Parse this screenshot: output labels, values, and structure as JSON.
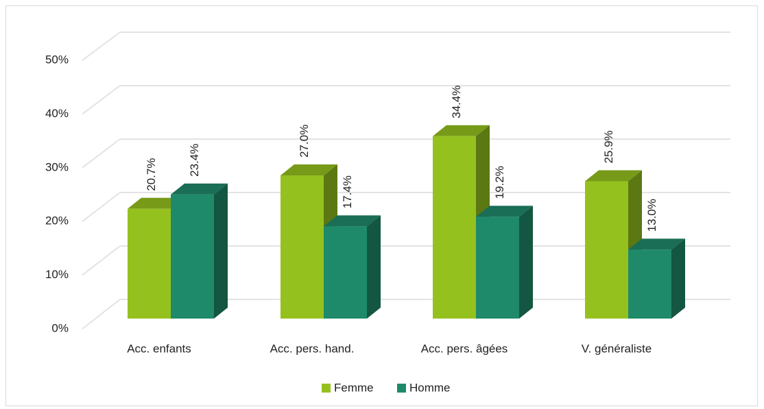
{
  "chart_data": {
    "type": "bar3d",
    "categories": [
      "Acc. enfants",
      "Acc. pers. hand.",
      "Acc. pers. âgées",
      "V. généraliste"
    ],
    "series": [
      {
        "name": "Femme",
        "color": "#95c11f",
        "values": [
          20.7,
          27.0,
          34.4,
          25.9
        ],
        "value_labels": [
          "20.7%",
          "27.0%",
          "34.4%",
          "25.9%"
        ]
      },
      {
        "name": "Homme",
        "color": "#1f8a6a",
        "values": [
          23.4,
          17.4,
          19.2,
          13.0
        ],
        "value_labels": [
          "23.4%",
          "17.4%",
          "19.2%",
          "13.0%"
        ]
      }
    ],
    "ylim": [
      0,
      50
    ],
    "yticks": [
      {
        "value": 0,
        "label": "0%"
      },
      {
        "value": 10,
        "label": "10%"
      },
      {
        "value": 20,
        "label": "20%"
      },
      {
        "value": 30,
        "label": "30%"
      },
      {
        "value": 40,
        "label": "40%"
      },
      {
        "value": 50,
        "label": "50%"
      }
    ],
    "grid": true,
    "legend": "bottom"
  }
}
